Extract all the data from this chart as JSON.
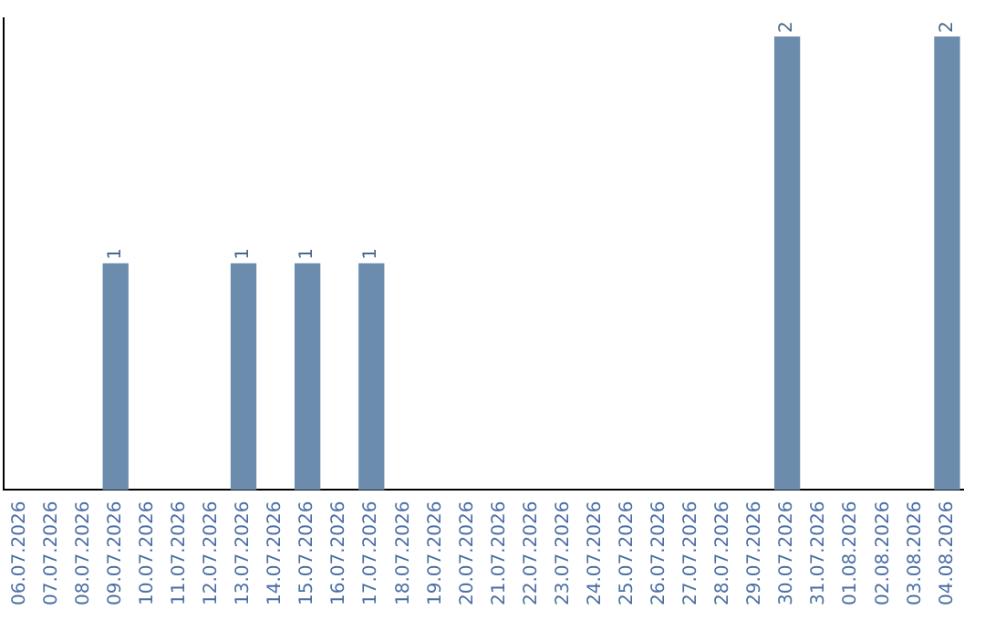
{
  "chart_data": {
    "type": "bar",
    "categories": [
      "06.07.2026",
      "07.07.2026",
      "08.07.2026",
      "09.07.2026",
      "10.07.2026",
      "11.07.2026",
      "12.07.2026",
      "13.07.2026",
      "14.07.2026",
      "15.07.2026",
      "16.07.2026",
      "17.07.2026",
      "18.07.2026",
      "19.07.2026",
      "20.07.2026",
      "21.07.2026",
      "22.07.2026",
      "23.07.2026",
      "24.07.2026",
      "25.07.2026",
      "26.07.2026",
      "27.07.2026",
      "28.07.2026",
      "29.07.2026",
      "30.07.2026",
      "31.07.2026",
      "01.08.2026",
      "02.08.2026",
      "03.08.2026",
      "04.08.2026"
    ],
    "values": [
      0,
      0,
      0,
      1,
      0,
      0,
      0,
      1,
      0,
      1,
      0,
      1,
      0,
      0,
      0,
      0,
      0,
      0,
      0,
      0,
      0,
      0,
      0,
      0,
      2,
      0,
      0,
      0,
      0,
      2
    ],
    "value_labels": [
      null,
      null,
      null,
      "1",
      null,
      null,
      null,
      "1",
      null,
      "1",
      null,
      "1",
      null,
      null,
      null,
      null,
      null,
      null,
      null,
      null,
      null,
      null,
      null,
      null,
      "2",
      null,
      null,
      null,
      null,
      "2"
    ],
    "color": "#6b8cac",
    "ylim": [
      0,
      2.08
    ],
    "tick_labels": "x",
    "grid": false,
    "legend": false
  }
}
